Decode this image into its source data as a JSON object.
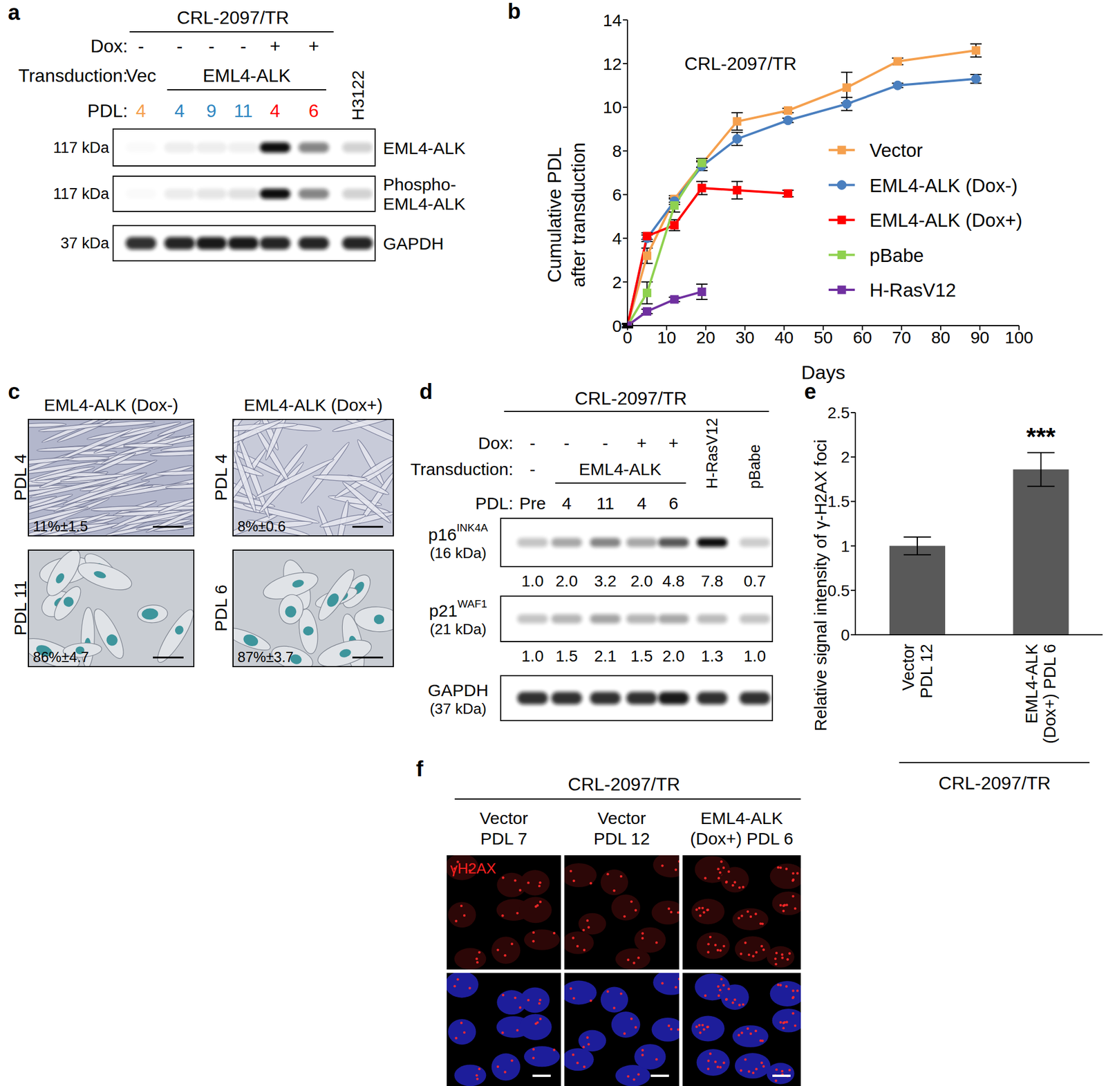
{
  "chart_data": [
    {
      "panel": "b",
      "type": "line",
      "title": "CRL-2097/TR",
      "xlabel": "Days",
      "ylabel": "Cumulative PDL\nafter transduction",
      "xlim": [
        0,
        100
      ],
      "xticks": [
        0,
        10,
        20,
        30,
        40,
        50,
        60,
        70,
        80,
        90,
        100
      ],
      "ylim": [
        0,
        14
      ],
      "yticks": [
        0,
        2,
        4,
        6,
        8,
        10,
        12,
        14
      ],
      "legend": "right",
      "series": [
        {
          "name": "Vector",
          "color": "#f5a04e",
          "marker": "square",
          "x": [
            0,
            5,
            12,
            19,
            28,
            41,
            56,
            69,
            89
          ],
          "values": [
            0,
            3.2,
            5.8,
            7.4,
            9.35,
            9.85,
            10.9,
            12.1,
            12.6
          ],
          "errors": [
            0.1,
            0.35,
            0.15,
            0.15,
            0.4,
            0.1,
            0.7,
            0.15,
            0.3
          ]
        },
        {
          "name": "EML4-ALK (Dox-)",
          "color": "#4a7fbf",
          "marker": "circle",
          "x": [
            0,
            5,
            12,
            19,
            28,
            41,
            56,
            69,
            89
          ],
          "values": [
            0,
            4.0,
            5.7,
            7.3,
            8.55,
            9.4,
            10.15,
            11.0,
            11.3
          ],
          "errors": [
            0.1,
            0.15,
            0.15,
            0.2,
            0.3,
            0.1,
            0.3,
            0.1,
            0.2
          ]
        },
        {
          "name": "EML4-ALK (Dox+)",
          "color": "#ff0000",
          "marker": "square",
          "x": [
            0,
            5,
            12,
            19,
            28,
            41
          ],
          "values": [
            0,
            4.1,
            4.6,
            6.3,
            6.2,
            6.05
          ],
          "errors": [
            0.1,
            0.15,
            0.25,
            0.3,
            0.4,
            0.15
          ]
        },
        {
          "name": "pBabe",
          "color": "#8fd14f",
          "marker": "square",
          "x": [
            0,
            5,
            12,
            19
          ],
          "values": [
            0,
            1.5,
            5.5,
            7.45
          ],
          "errors": [
            0.1,
            0.5,
            0.3,
            0.2
          ]
        },
        {
          "name": "H-RasV12",
          "color": "#7030a0",
          "marker": "square",
          "x": [
            0,
            5,
            12,
            19
          ],
          "values": [
            0,
            0.65,
            1.2,
            1.55
          ],
          "errors": [
            0.05,
            0.1,
            0.1,
            0.35
          ]
        }
      ]
    },
    {
      "panel": "e",
      "type": "bar",
      "categories": [
        "Vector\nPDL 12",
        "EML4-ALK\n(Dox+) PDL 6"
      ],
      "values": [
        1.0,
        1.86
      ],
      "errors": [
        0.1,
        0.19
      ],
      "annotations": [
        null,
        "***"
      ],
      "color": "#595959",
      "ylabel": "Relative signal intensity of γ-H2AX foci",
      "ylim": [
        0,
        2.5
      ],
      "yticks": [
        0,
        0.5,
        1,
        1.5,
        2,
        2.5
      ],
      "group_label": "CRL-2097/TR"
    }
  ],
  "panels": {
    "a": {
      "letter": "a",
      "title": "CRL-2097/TR",
      "dox_label": "Dox:",
      "transduction_label": "Transduction:",
      "pdl_label": "PDL:",
      "lanes": [
        {
          "dox": "-",
          "transduction": "Vec",
          "pdl": "4",
          "pdl_color": "#f5a04e"
        },
        {
          "dox": "-",
          "transduction": "EML4-ALK",
          "pdl": "4",
          "pdl_color": "#2e86c1"
        },
        {
          "dox": "-",
          "transduction": "EML4-ALK",
          "pdl": "9",
          "pdl_color": "#2e86c1"
        },
        {
          "dox": "-",
          "transduction": "EML4-ALK",
          "pdl": "11",
          "pdl_color": "#2e86c1"
        },
        {
          "dox": "+",
          "transduction": "EML4-ALK",
          "pdl": "4",
          "pdl_color": "#ff0000"
        },
        {
          "dox": "+",
          "transduction": "EML4-ALK",
          "pdl": "6",
          "pdl_color": "#ff0000"
        },
        {
          "label": "H3122"
        }
      ],
      "rows": [
        {
          "size": "117 kDa",
          "name": "EML4-ALK",
          "band_intensity": [
            0.02,
            0.07,
            0.07,
            0.06,
            1.0,
            0.5,
            0.18
          ]
        },
        {
          "size": "117 kDa",
          "name": "Phospho-\nEML4-ALK",
          "band_intensity": [
            0.02,
            0.08,
            0.1,
            0.12,
            1.0,
            0.5,
            0.18
          ]
        },
        {
          "size": "37 kDa",
          "name": "GAPDH",
          "band_intensity": [
            0.85,
            0.9,
            0.95,
            0.95,
            0.9,
            0.9,
            0.9
          ]
        }
      ]
    },
    "c": {
      "letter": "c",
      "columns": [
        {
          "title": "EML4-ALK (Dox-)",
          "rows": [
            {
              "label": "PDL 4",
              "percent": "11%±1.5"
            },
            {
              "label": "PDL 11",
              "percent": "86%±4.7"
            }
          ]
        },
        {
          "title": "EML4-ALK (Dox+)",
          "rows": [
            {
              "label": "PDL 4",
              "percent": "8%±0.6"
            },
            {
              "label": "PDL 6",
              "percent": "87%±3.7"
            }
          ]
        }
      ]
    },
    "d": {
      "letter": "d",
      "title": "CRL-2097/TR",
      "dox_label": "Dox:",
      "transduction_label": "Transduction:",
      "pdl_label": "PDL:",
      "lanes": [
        {
          "dox": "-",
          "transduction": "-",
          "pdl": "Pre"
        },
        {
          "dox": "-",
          "transduction": "EML4-ALK",
          "pdl": "4"
        },
        {
          "dox": "-",
          "transduction": "EML4-ALK",
          "pdl": "11"
        },
        {
          "dox": "+",
          "transduction": "EML4-ALK",
          "pdl": "4"
        },
        {
          "dox": "+",
          "transduction": "EML4-ALK",
          "pdl": "6"
        },
        {
          "label": "H-RasV12"
        },
        {
          "label": "pBabe"
        }
      ],
      "rows": [
        {
          "name": "p16",
          "sup": "INK4A",
          "size": "(16 kDa)",
          "quant": [
            "1.0",
            "2.0",
            "3.2",
            "2.0",
            "4.8",
            "7.8",
            "0.7"
          ]
        },
        {
          "name": "p21",
          "sup": "WAF1",
          "size": "(21 kDa)",
          "quant": [
            "1.0",
            "1.5",
            "2.1",
            "1.5",
            "2.0",
            "1.3",
            "1.0"
          ]
        },
        {
          "name": "GAPDH",
          "size": "(37 kDa)",
          "band_intensity": [
            0.85,
            0.85,
            0.85,
            0.85,
            0.95,
            0.85,
            0.85
          ]
        }
      ]
    },
    "f": {
      "letter": "f",
      "title": "CRL-2097/TR",
      "stain": "γH2AX",
      "columns": [
        "Vector\nPDL 7",
        "Vector\nPDL 12",
        "EML4-ALK\n(Dox+) PDL 6"
      ]
    }
  }
}
